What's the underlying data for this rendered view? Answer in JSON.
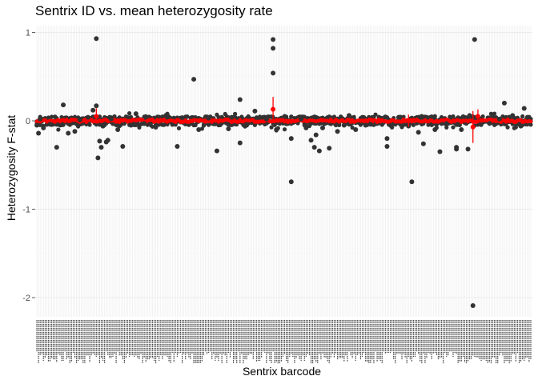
{
  "chart_data": {
    "type": "scatter",
    "title": "Sentrix ID vs. mean heterozygosity rate",
    "xlabel": "Sentrix barcode",
    "ylabel": "Heterozygosity F-stat",
    "ylim": [
      -2.2,
      1.1
    ],
    "y_ticks": [
      "1",
      "0",
      "-1",
      "-2"
    ],
    "y_tick_values": [
      1,
      0,
      -1,
      -2
    ],
    "n_categories": 300,
    "grid": true,
    "legend": "none",
    "colors": {
      "points": "#333333",
      "summary": "#ff0000",
      "grid": "#ebebeb",
      "panel": "#ffffff"
    },
    "x_tick_labels_note": "",
    "series": [
      {
        "kind": "sample_points",
        "points": [
          {
            "x": 1,
            "y": -0.05
          },
          {
            "x": 2,
            "y": -0.14
          },
          {
            "x": 3,
            "y": 0.02
          },
          {
            "x": 5,
            "y": -0.08
          },
          {
            "x": 9,
            "y": -0.04
          },
          {
            "x": 13,
            "y": -0.3
          },
          {
            "x": 17,
            "y": 0.18
          },
          {
            "x": 20,
            "y": -0.14
          },
          {
            "x": 24,
            "y": -0.12
          },
          {
            "x": 27,
            "y": 0.01
          },
          {
            "x": 32,
            "y": 0.04
          },
          {
            "x": 35,
            "y": 0.12
          },
          {
            "x": 37,
            "y": 0.93
          },
          {
            "x": 37,
            "y": 0.17
          },
          {
            "x": 38,
            "y": -0.42
          },
          {
            "x": 39,
            "y": -0.23
          },
          {
            "x": 40,
            "y": -0.3
          },
          {
            "x": 41,
            "y": -0.06
          },
          {
            "x": 43,
            "y": -0.24
          },
          {
            "x": 44,
            "y": -0.22
          },
          {
            "x": 46,
            "y": 0.02
          },
          {
            "x": 50,
            "y": -0.1
          },
          {
            "x": 53,
            "y": -0.29
          },
          {
            "x": 58,
            "y": -0.05
          },
          {
            "x": 61,
            "y": 0.08
          },
          {
            "x": 66,
            "y": -0.03
          },
          {
            "x": 73,
            "y": -0.07
          },
          {
            "x": 80,
            "y": 0.06
          },
          {
            "x": 86,
            "y": -0.29
          },
          {
            "x": 96,
            "y": 0.47
          },
          {
            "x": 99,
            "y": -0.1
          },
          {
            "x": 105,
            "y": 0.03
          },
          {
            "x": 110,
            "y": -0.34
          },
          {
            "x": 117,
            "y": -0.09
          },
          {
            "x": 119,
            "y": 0.04
          },
          {
            "x": 124,
            "y": 0.24
          },
          {
            "x": 124,
            "y": -0.25
          },
          {
            "x": 128,
            "y": -0.05
          },
          {
            "x": 133,
            "y": 0.11
          },
          {
            "x": 140,
            "y": 0.02
          },
          {
            "x": 144,
            "y": 0.92
          },
          {
            "x": 144,
            "y": 0.82
          },
          {
            "x": 144,
            "y": 0.54
          },
          {
            "x": 146,
            "y": -0.1
          },
          {
            "x": 151,
            "y": 0.05
          },
          {
            "x": 155,
            "y": -0.69
          },
          {
            "x": 155,
            "y": -0.2
          },
          {
            "x": 161,
            "y": 0.02
          },
          {
            "x": 164,
            "y": -0.08
          },
          {
            "x": 167,
            "y": -0.22
          },
          {
            "x": 169,
            "y": -0.3
          },
          {
            "x": 170,
            "y": -0.16
          },
          {
            "x": 172,
            "y": -0.34
          },
          {
            "x": 174,
            "y": -0.08
          },
          {
            "x": 178,
            "y": -0.31
          },
          {
            "x": 183,
            "y": -0.12
          },
          {
            "x": 187,
            "y": -0.05
          },
          {
            "x": 190,
            "y": 0.06
          },
          {
            "x": 194,
            "y": -0.1
          },
          {
            "x": 200,
            "y": -0.05
          },
          {
            "x": 203,
            "y": -0.04
          },
          {
            "x": 213,
            "y": -0.29
          },
          {
            "x": 213,
            "y": -0.2
          },
          {
            "x": 220,
            "y": 0.04
          },
          {
            "x": 226,
            "y": -0.06
          },
          {
            "x": 228,
            "y": -0.69
          },
          {
            "x": 232,
            "y": -0.13
          },
          {
            "x": 234,
            "y": 0.05
          },
          {
            "x": 235,
            "y": -0.26
          },
          {
            "x": 242,
            "y": -0.1
          },
          {
            "x": 245,
            "y": -0.35
          },
          {
            "x": 249,
            "y": -0.03
          },
          {
            "x": 255,
            "y": -0.32
          },
          {
            "x": 255,
            "y": -0.3
          },
          {
            "x": 258,
            "y": -0.1
          },
          {
            "x": 262,
            "y": -0.32
          },
          {
            "x": 263,
            "y": 0.06
          },
          {
            "x": 265,
            "y": -2.09
          },
          {
            "x": 266,
            "y": 0.92
          },
          {
            "x": 268,
            "y": 0.04
          },
          {
            "x": 275,
            "y": -0.03
          },
          {
            "x": 281,
            "y": 0.02
          },
          {
            "x": 284,
            "y": 0.2
          },
          {
            "x": 289,
            "y": 0.06
          },
          {
            "x": 294,
            "y": -0.06
          },
          {
            "x": 296,
            "y": 0.14
          },
          {
            "x": 298,
            "y": 0.04
          }
        ]
      },
      {
        "kind": "mean_with_error",
        "points": [
          {
            "x": 37,
            "y": 0.05,
            "ymin": -0.03,
            "ymax": 0.14
          },
          {
            "x": 144,
            "y": 0.13,
            "ymin": 0.01,
            "ymax": 0.27
          },
          {
            "x": 226,
            "y": 0.0,
            "ymin": -0.07,
            "ymax": 0.07
          },
          {
            "x": 265,
            "y": -0.07,
            "ymin": -0.25,
            "ymax": 0.11
          },
          {
            "x": 268,
            "y": 0.05,
            "ymin": -0.03,
            "ymax": 0.13
          }
        ]
      }
    ]
  }
}
